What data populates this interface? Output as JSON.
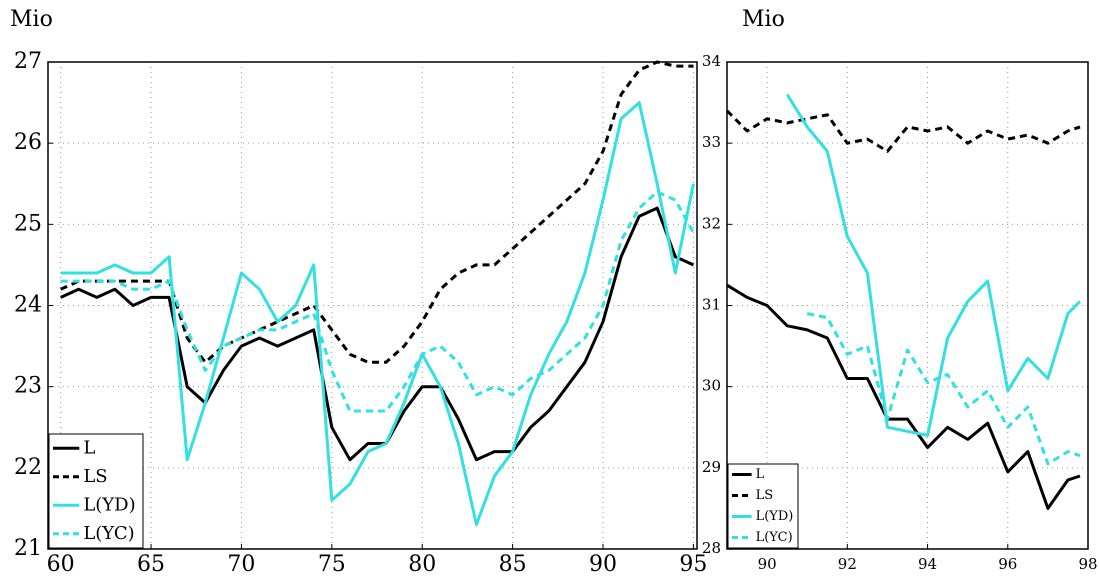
{
  "chart_data": [
    {
      "type": "line",
      "ylabel": "Mio",
      "x": [
        60,
        61,
        62,
        63,
        64,
        65,
        66,
        67,
        68,
        69,
        70,
        71,
        72,
        73,
        74,
        75,
        76,
        77,
        78,
        79,
        80,
        81,
        82,
        83,
        84,
        85,
        86,
        87,
        88,
        89,
        90,
        91,
        92,
        93,
        94,
        95
      ],
      "xlim": [
        59.3,
        95.2
      ],
      "xticks": [
        60,
        65,
        70,
        75,
        80,
        85,
        90,
        95
      ],
      "ylim": [
        21,
        27
      ],
      "yticks": [
        21,
        22,
        23,
        24,
        25,
        26,
        27
      ],
      "grid": true,
      "legend": "lower left",
      "series": [
        {
          "name": "L",
          "color": "#000000",
          "style": "solid",
          "values": [
            24.1,
            24.2,
            24.1,
            24.2,
            24.0,
            24.1,
            24.1,
            23.0,
            22.8,
            23.2,
            23.5,
            23.6,
            23.5,
            23.6,
            23.7,
            22.5,
            22.1,
            22.3,
            22.3,
            22.7,
            23.0,
            23.0,
            22.6,
            22.1,
            22.2,
            22.2,
            22.5,
            22.7,
            23.0,
            23.3,
            23.8,
            24.6,
            25.1,
            25.2,
            24.6,
            24.5
          ]
        },
        {
          "name": "LS",
          "color": "#000000",
          "style": "dashed",
          "values": [
            24.2,
            24.3,
            24.3,
            24.3,
            24.3,
            24.3,
            24.3,
            23.6,
            23.3,
            23.5,
            23.6,
            23.7,
            23.8,
            23.9,
            24.0,
            23.7,
            23.4,
            23.3,
            23.3,
            23.5,
            23.8,
            24.2,
            24.4,
            24.5,
            24.5,
            24.7,
            24.9,
            25.1,
            25.3,
            25.5,
            25.9,
            26.6,
            26.9,
            27.0,
            26.95,
            26.95
          ]
        },
        {
          "name": "L(YD)",
          "color": "#33e0e0",
          "style": "solid",
          "values": [
            24.4,
            24.4,
            24.4,
            24.5,
            24.4,
            24.4,
            24.6,
            22.1,
            22.8,
            23.6,
            24.4,
            24.2,
            23.8,
            24.0,
            24.5,
            21.6,
            21.8,
            22.2,
            22.3,
            22.8,
            23.4,
            23.0,
            22.3,
            21.3,
            21.9,
            22.2,
            22.9,
            23.4,
            23.8,
            24.4,
            25.3,
            26.3,
            26.5,
            25.5,
            24.4,
            25.5
          ]
        },
        {
          "name": "L(YC)",
          "color": "#33e0e0",
          "style": "dashed",
          "values": [
            24.3,
            24.3,
            24.3,
            24.3,
            24.2,
            24.2,
            24.3,
            23.7,
            23.2,
            23.5,
            23.6,
            23.7,
            23.7,
            23.8,
            23.9,
            23.2,
            22.7,
            22.7,
            22.7,
            23.0,
            23.4,
            23.5,
            23.3,
            22.9,
            23.0,
            22.9,
            23.1,
            23.2,
            23.4,
            23.6,
            24.0,
            24.8,
            25.2,
            25.4,
            25.3,
            24.9
          ]
        }
      ]
    },
    {
      "type": "line",
      "ylabel": "Mio",
      "x": [
        89,
        89.5,
        90,
        90.5,
        91,
        91.5,
        92,
        92.5,
        93,
        93.5,
        94,
        94.5,
        95,
        95.5,
        96,
        96.5,
        97,
        97.5,
        97.8
      ],
      "xlim": [
        89,
        98
      ],
      "xticks": [
        90,
        92,
        94,
        96,
        98
      ],
      "ylim": [
        28,
        34
      ],
      "yticks": [
        28,
        29,
        30,
        31,
        32,
        33,
        34
      ],
      "grid": true,
      "legend": "lower left",
      "series": [
        {
          "name": "L",
          "color": "#000000",
          "style": "solid",
          "values": [
            31.25,
            31.1,
            31.0,
            30.75,
            30.7,
            30.6,
            30.1,
            30.1,
            29.6,
            29.6,
            29.25,
            29.5,
            29.35,
            29.55,
            28.95,
            29.2,
            28.5,
            28.85,
            28.9
          ]
        },
        {
          "name": "LS",
          "color": "#000000",
          "style": "dashed",
          "values": [
            33.4,
            33.15,
            33.3,
            33.25,
            33.3,
            33.35,
            33.0,
            33.05,
            32.9,
            33.2,
            33.15,
            33.2,
            33.0,
            33.15,
            33.05,
            33.1,
            33.0,
            33.15,
            33.2
          ]
        },
        {
          "name": "L(YD)",
          "color": "#33e0e0",
          "style": "solid",
          "values": [
            null,
            null,
            null,
            33.6,
            33.2,
            32.9,
            31.85,
            31.4,
            29.5,
            29.45,
            29.4,
            30.6,
            31.05,
            31.3,
            29.95,
            30.35,
            30.1,
            30.9,
            31.05
          ]
        },
        {
          "name": "L(YC)",
          "color": "#33e0e0",
          "style": "dashed",
          "values": [
            null,
            null,
            null,
            null,
            30.9,
            30.85,
            30.4,
            30.5,
            29.6,
            30.45,
            30.05,
            30.15,
            29.75,
            29.95,
            29.5,
            29.75,
            29.05,
            29.2,
            29.15
          ]
        }
      ]
    }
  ]
}
